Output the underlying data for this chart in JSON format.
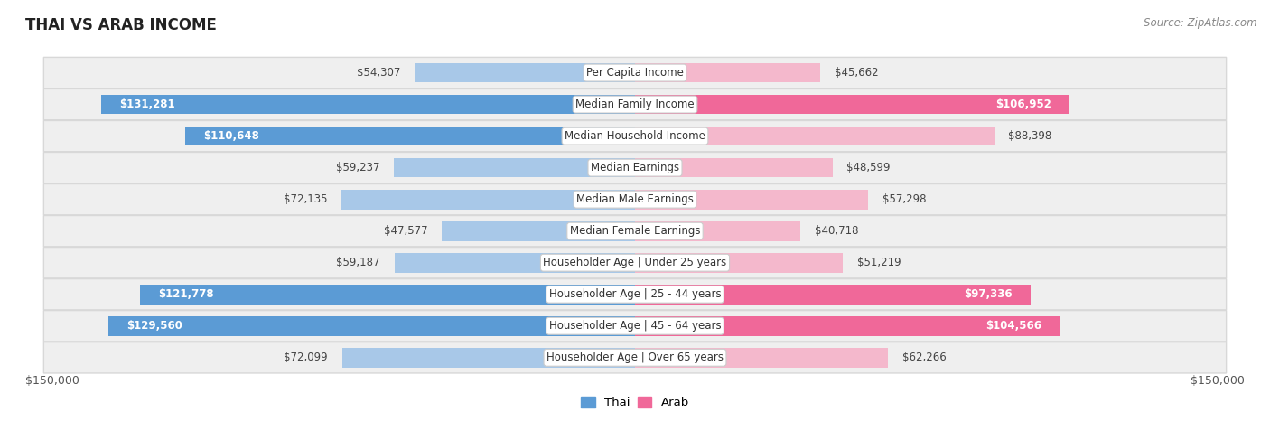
{
  "title": "THAI VS ARAB INCOME",
  "source": "Source: ZipAtlas.com",
  "categories": [
    "Per Capita Income",
    "Median Family Income",
    "Median Household Income",
    "Median Earnings",
    "Median Male Earnings",
    "Median Female Earnings",
    "Householder Age | Under 25 years",
    "Householder Age | 25 - 44 years",
    "Householder Age | 45 - 64 years",
    "Householder Age | Over 65 years"
  ],
  "thai_values": [
    54307,
    131281,
    110648,
    59237,
    72135,
    47577,
    59187,
    121778,
    129560,
    72099
  ],
  "arab_values": [
    45662,
    106952,
    88398,
    48599,
    57298,
    40718,
    51219,
    97336,
    104566,
    62266
  ],
  "max_value": 150000,
  "thai_color_light": "#a8c8e8",
  "thai_color_dark": "#5b9bd5",
  "arab_color_light": "#f4b8cc",
  "arab_color_dark": "#f06899",
  "thai_label_threshold": 100000,
  "arab_label_threshold": 90000,
  "row_bg_color": "#efefef",
  "row_border_color": "#d8d8d8",
  "bar_height": 0.62,
  "figsize": [
    14.06,
    4.67
  ],
  "dpi": 100,
  "xlabel_left": "$150,000",
  "xlabel_right": "$150,000",
  "background_color": "#ffffff",
  "title_color": "#222222",
  "label_fontsize": 8.5,
  "title_fontsize": 12,
  "source_fontsize": 8.5
}
